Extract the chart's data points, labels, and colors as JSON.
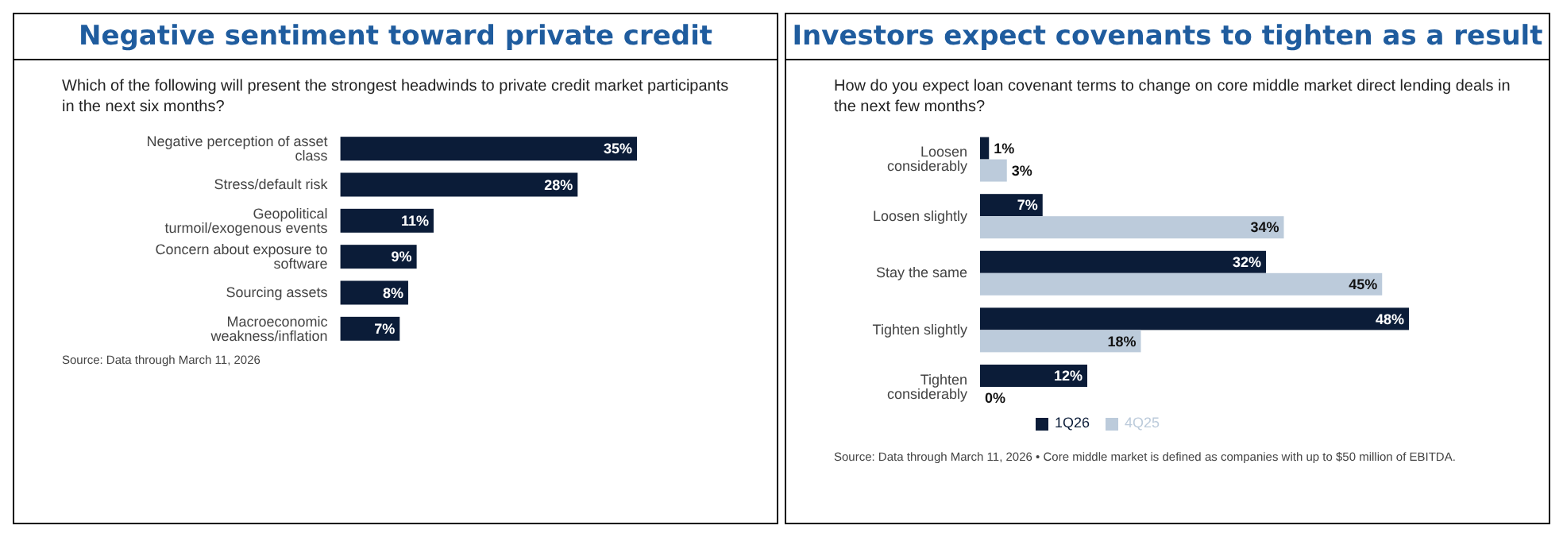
{
  "chart_data": [
    {
      "type": "bar",
      "orientation": "horizontal",
      "title": "Negative sentiment toward private credit",
      "subtitle": "Which of the following will present the strongest headwinds to private credit market participants in the next six months?",
      "categories": [
        "Negative perception of asset class",
        "Stress/default risk",
        "Geopolitical turmoil/exogenous events",
        "Concern about exposure to software",
        "Sourcing assets",
        "Macroeconomic weakness/inflation"
      ],
      "series": [
        {
          "color": "#0b1c38",
          "values": [
            35,
            28,
            11,
            9,
            8,
            7
          ],
          "value_labels": [
            "35%",
            "28%",
            "11%",
            "9%",
            "8%",
            "7%"
          ]
        }
      ],
      "annotations": [
        "Source: Data through March 11, 2026"
      ]
    },
    {
      "type": "bar",
      "orientation": "horizontal",
      "title": "Investors expect covenants to tighten as a result",
      "subtitle": "How do you expect loan covenant terms to change on core middle market direct lending deals in the next few months?",
      "categories": [
        "Loosen considerably",
        "Loosen slightly",
        "Stay the same",
        "Tighten slightly",
        "Tighten considerably"
      ],
      "series": [
        {
          "name": "1Q26",
          "color": "#0b1c38",
          "values": [
            1,
            7,
            32,
            48,
            12
          ],
          "value_labels": [
            "1%",
            "7%",
            "32%",
            "48%",
            "12%"
          ]
        },
        {
          "name": "4Q25",
          "color": "#bccbdb",
          "values": [
            3,
            34,
            45,
            18,
            0
          ],
          "value_labels": [
            "3%",
            "34%",
            "45%",
            "18%",
            "0%"
          ]
        }
      ],
      "legend": "bottom",
      "annotations": [
        "Source: Data through March 11, 2026 • Core middle market is defined as companies with up to $50 million of EBITDA."
      ]
    }
  ]
}
